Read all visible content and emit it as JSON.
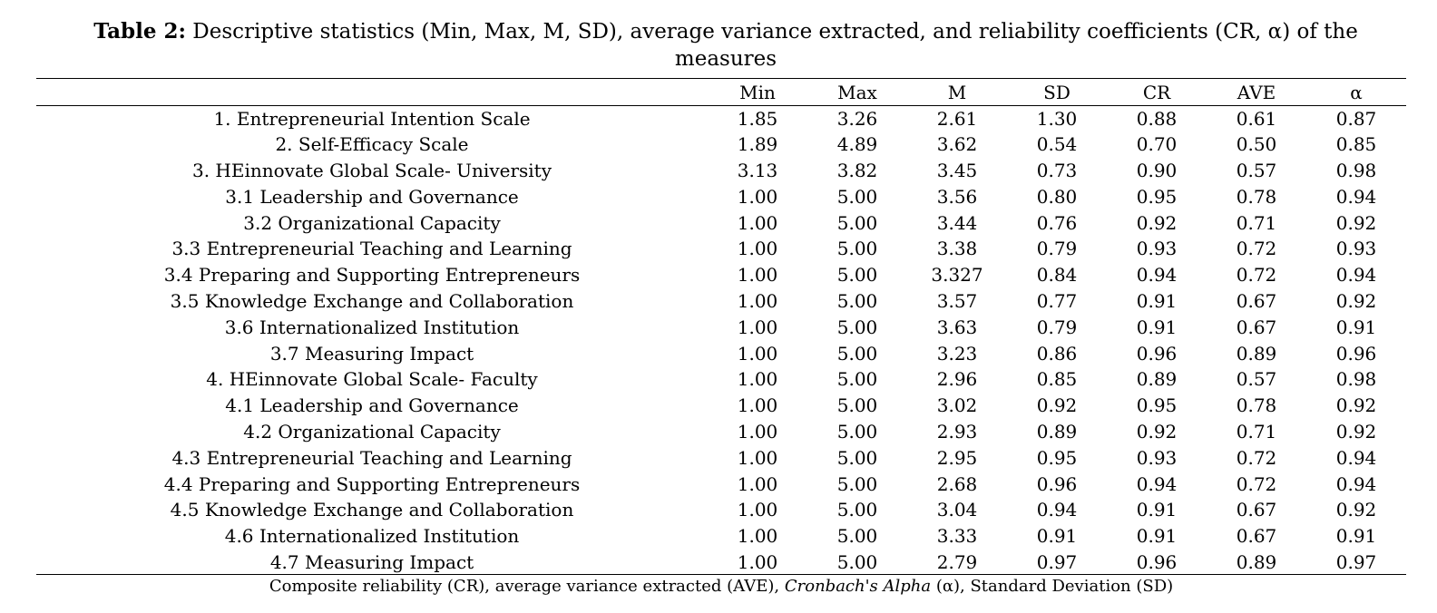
{
  "caption": {
    "label": "Table 2:",
    "text": " Descriptive statistics (Min, Max, M, SD), average variance extracted, and reliability coefficients (CR, α) of the measures"
  },
  "table": {
    "headers": [
      "",
      "Min",
      "Max",
      "M",
      "SD",
      "CR",
      "AVE",
      "α"
    ],
    "rows": [
      [
        "1.   Entrepreneurial Intention Scale",
        "1.85",
        "3.26",
        "2.61",
        "1.30",
        "0.88",
        "0.61",
        "0.87"
      ],
      [
        "2.   Self-Efficacy Scale",
        "1.89",
        "4.89",
        "3.62",
        "0.54",
        "0.70",
        "0.50",
        "0.85"
      ],
      [
        "3.   HEinnovate Global Scale- University",
        "3.13",
        "3.82",
        "3.45",
        "0.73",
        "0.90",
        "0.57",
        "0.98"
      ],
      [
        "3.1 Leadership and Governance",
        "1.00",
        "5.00",
        "3.56",
        "0.80",
        "0.95",
        "0.78",
        "0.94"
      ],
      [
        "3.2 Organizational Capacity",
        "1.00",
        "5.00",
        "3.44",
        "0.76",
        "0.92",
        "0.71",
        "0.92"
      ],
      [
        "3.3 Entrepreneurial Teaching and Learning",
        "1.00",
        "5.00",
        "3.38",
        "0.79",
        "0.93",
        "0.72",
        "0.93"
      ],
      [
        "3.4 Preparing and Supporting Entrepreneurs",
        "1.00",
        "5.00",
        "3.327",
        "0.84",
        "0.94",
        "0.72",
        "0.94"
      ],
      [
        "3.5 Knowledge Exchange and Collaboration",
        "1.00",
        "5.00",
        "3.57",
        "0.77",
        "0.91",
        "0.67",
        "0.92"
      ],
      [
        "3.6 Internationalized Institution",
        "1.00",
        "5.00",
        "3.63",
        "0.79",
        "0.91",
        "0.67",
        "0.91"
      ],
      [
        "3.7 Measuring Impact",
        "1.00",
        "5.00",
        "3.23",
        "0.86",
        "0.96",
        "0.89",
        "0.96"
      ],
      [
        "4.   HEinnovate Global Scale- Faculty",
        "1.00",
        "5.00",
        "2.96",
        "0.85",
        "0.89",
        "0.57",
        "0.98"
      ],
      [
        "4.1 Leadership and Governance",
        "1.00",
        "5.00",
        "3.02",
        "0.92",
        "0.95",
        "0.78",
        "0.92"
      ],
      [
        "4.2 Organizational Capacity",
        "1.00",
        "5.00",
        "2.93",
        "0.89",
        "0.92",
        "0.71",
        "0.92"
      ],
      [
        "4.3 Entrepreneurial Teaching and Learning",
        "1.00",
        "5.00",
        "2.95",
        "0.95",
        "0.93",
        "0.72",
        "0.94"
      ],
      [
        "4.4 Preparing and Supporting Entrepreneurs",
        "1.00",
        "5.00",
        "2.68",
        "0.96",
        "0.94",
        "0.72",
        "0.94"
      ],
      [
        "4.5 Knowledge Exchange and Collaboration",
        "1.00",
        "5.00",
        "3.04",
        "0.94",
        "0.91",
        "0.67",
        "0.92"
      ],
      [
        "4.6 Internationalized Institution",
        "1.00",
        "5.00",
        "3.33",
        "0.91",
        "0.91",
        "0.67",
        "0.91"
      ],
      [
        "4.7 Measuring Impact",
        "1.00",
        "5.00",
        "2.79",
        "0.97",
        "0.96",
        "0.89",
        "0.97"
      ]
    ]
  },
  "footnote": {
    "part1": "Composite reliability (CR), average variance extracted (AVE), ",
    "italic": "Cronbach's Alpha",
    "part2": " (α), Standard Deviation (SD)"
  }
}
